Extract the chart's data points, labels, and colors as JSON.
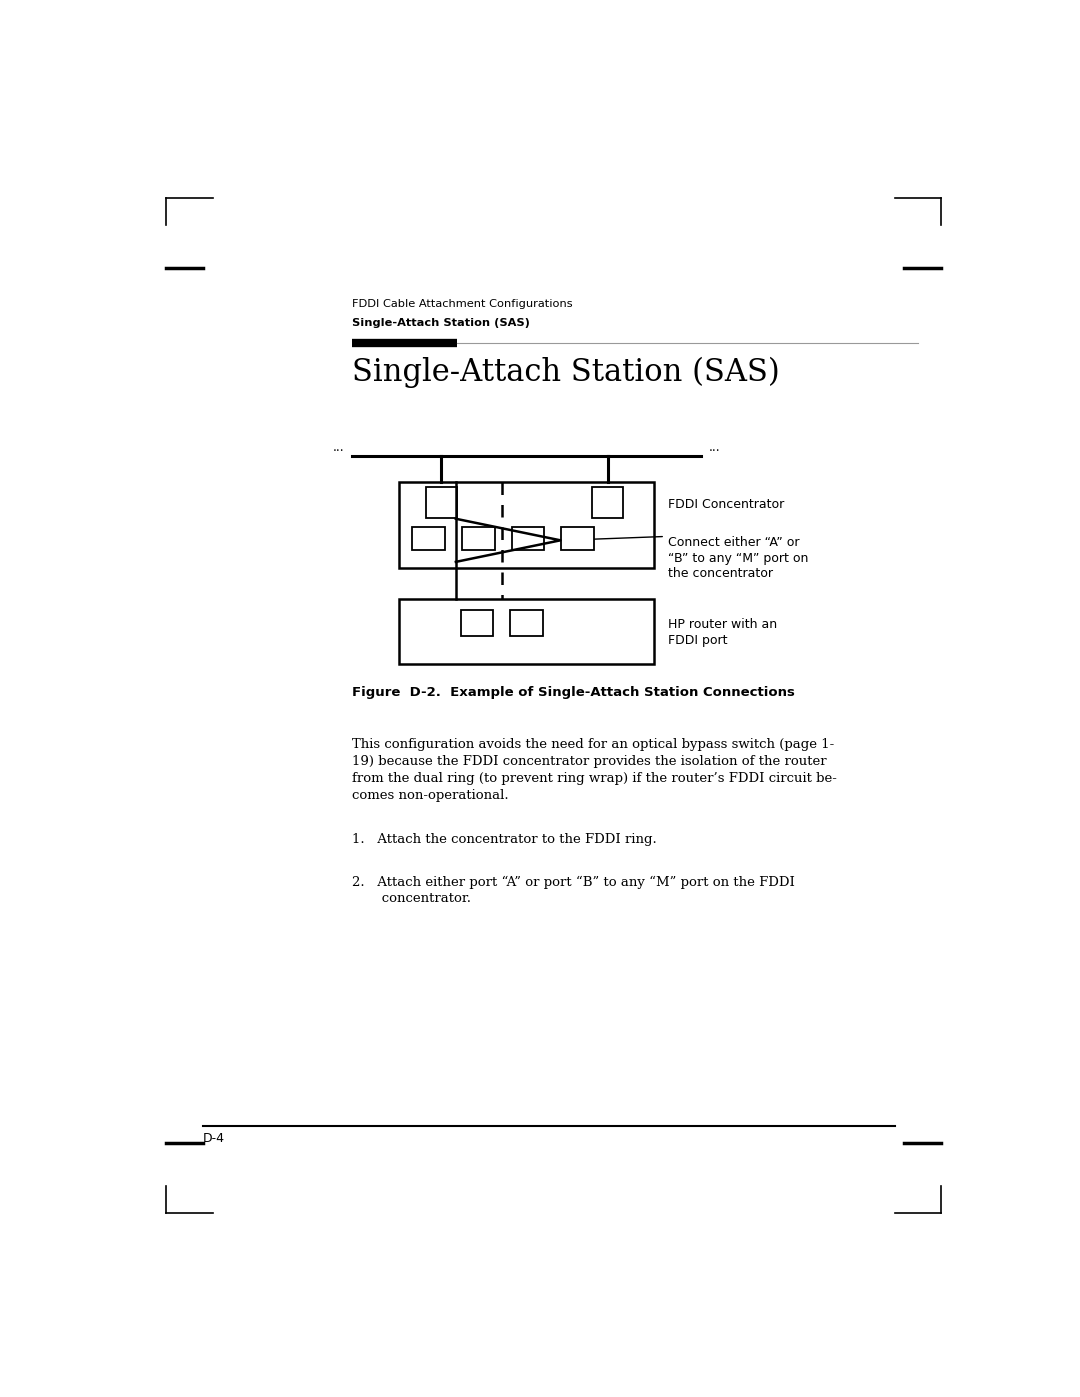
{
  "bg_color": "#ffffff",
  "page_width": 10.8,
  "page_height": 13.97,
  "header_line1": "FDDI Cable Attachment Configurations",
  "header_line2": "Single-Attach Station (SAS)",
  "section_title": "Single-Attach Station (SAS)",
  "figure_caption": "Figure  D-2.  Example of Single-Attach Station Connections",
  "body_text_lines": [
    "This configuration avoids the need for an optical bypass switch (page 1-",
    "19) because the FDDI concentrator provides the isolation of the router",
    "from the dual ring (to prevent ring wrap) if the router’s FDDI circuit be-",
    "comes non-operational."
  ],
  "list_item1": "1.   Attach the concentrator to the FDDI ring.",
  "list_item2_l1": "2.   Attach either port “A” or port “B” to any “M” port on the FDDI",
  "list_item2_l2": "       concentrator.",
  "footer_text": "D-4",
  "fddi_conc_label": "FDDI Concentrator",
  "connect_label_lines": [
    "Connect either “A” or",
    "“B” to any “M” port on",
    "the concentrator"
  ],
  "hp_router_label_lines": [
    "HP router with an",
    "FDDI port"
  ]
}
